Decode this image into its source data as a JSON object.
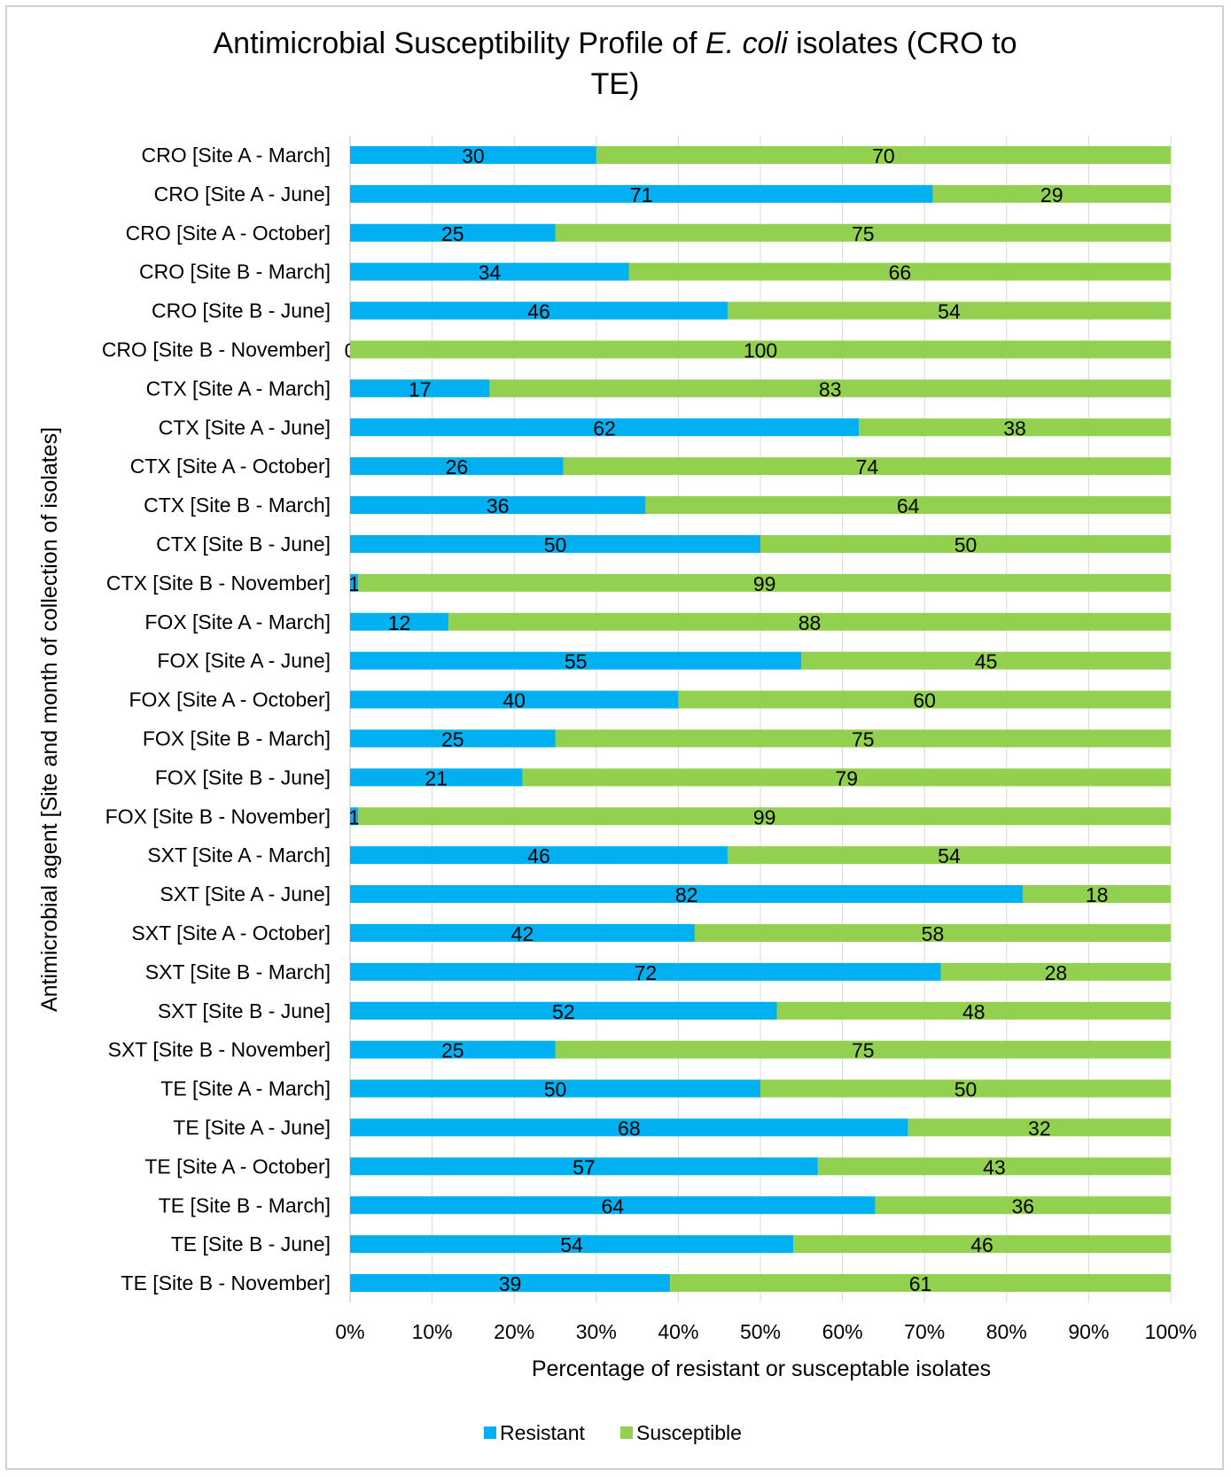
{
  "chart_data": {
    "type": "bar",
    "stacked": true,
    "orientation": "horizontal",
    "percent_stacked": true,
    "title_parts": [
      "Antimicrobial Susceptibility Profile of ",
      "E. coli",
      " isolates (CRO to",
      "TE)"
    ],
    "xlabel": "Percentage of resistant or susceptable isolates",
    "ylabel": "Antimicrobial agent [Site and month of collection of isolates]",
    "xlim": [
      0,
      100
    ],
    "xticks": [
      "0%",
      "10%",
      "20%",
      "30%",
      "40%",
      "50%",
      "60%",
      "70%",
      "80%",
      "90%",
      "100%"
    ],
    "grid": true,
    "legend_position": "bottom",
    "categories": [
      "CRO [Site A - March]",
      "CRO [Site A - June]",
      "CRO [Site A - October]",
      "CRO [Site B - March]",
      "CRO [Site B - June]",
      "CRO [Site B - November]",
      "CTX [Site A - March]",
      "CTX [Site A - June]",
      "CTX [Site A - October]",
      "CTX [Site B - March]",
      "CTX [Site B - June]",
      "CTX [Site B - November]",
      "FOX [Site A - March]",
      "FOX [Site A - June]",
      "FOX [Site A - October]",
      "FOX [Site B - March]",
      "FOX [Site B - June]",
      "FOX [Site B - November]",
      "SXT [Site A - March]",
      "SXT [Site A - June]",
      "SXT [Site A - October]",
      "SXT [Site B - March]",
      "SXT [Site B - June]",
      "SXT [Site B - November]",
      "TE [Site A - March]",
      "TE [Site A - June]",
      "TE [Site A - October]",
      "TE [Site B - March]",
      "TE [Site B - June]",
      "TE [Site B - November]"
    ],
    "series": [
      {
        "name": "Resistant",
        "color": "#00b0f0",
        "values": [
          30,
          71,
          25,
          34,
          46,
          0,
          17,
          62,
          26,
          36,
          50,
          1,
          12,
          55,
          40,
          25,
          21,
          1,
          46,
          82,
          42,
          72,
          52,
          25,
          50,
          68,
          57,
          64,
          54,
          39
        ]
      },
      {
        "name": "Susceptible",
        "color": "#92d050",
        "values": [
          70,
          29,
          75,
          66,
          54,
          100,
          83,
          38,
          74,
          64,
          50,
          99,
          88,
          45,
          60,
          75,
          79,
          99,
          54,
          18,
          58,
          28,
          48,
          75,
          50,
          32,
          43,
          36,
          46,
          61
        ]
      }
    ]
  }
}
